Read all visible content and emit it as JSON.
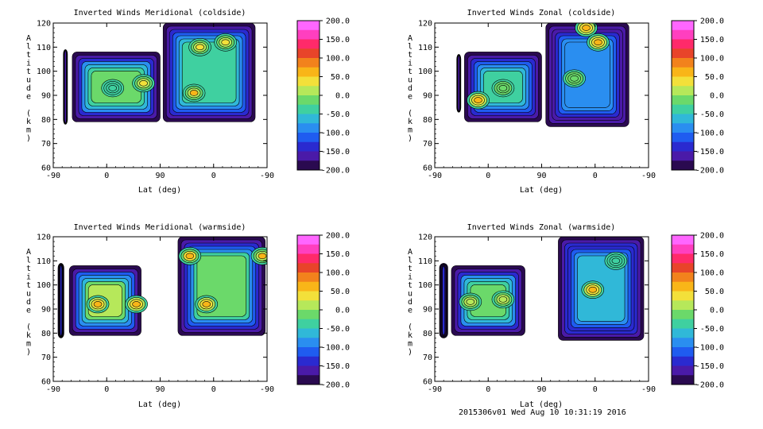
{
  "footer": "2015306v01 Wed Aug 10 10:31:19 2016",
  "colorbar": {
    "levels": [
      "200.0",
      "150.0",
      "100.0",
      "50.0",
      "0.0",
      "-50.0",
      "-100.0",
      "-150.0",
      "-200.0"
    ],
    "colors": [
      "#ff66ff",
      "#ff3fbf",
      "#ff2a6a",
      "#e8442a",
      "#f2821c",
      "#f9b518",
      "#f3e03a",
      "#b6e85a",
      "#6bd96a",
      "#3fd0a0",
      "#30b8d8",
      "#2a8ef0",
      "#1f5cf0",
      "#2a2ad0",
      "#4a1aa8",
      "#2a0a50"
    ]
  },
  "chart_data": [
    {
      "type": "contour",
      "title": "Inverted Winds Meridional (coldside)",
      "xlabel": "Lat (deg)",
      "ylabel": "Altitude (km)",
      "xticks": [
        "-90",
        "0",
        "90",
        "0",
        "-90"
      ],
      "yticks": [
        60,
        70,
        80,
        90,
        100,
        110,
        120
      ],
      "ylim": [
        60,
        120
      ],
      "regions": [
        {
          "x": [
            -73,
            -66
          ],
          "y": [
            78,
            109
          ],
          "level": -150
        },
        {
          "x": [
            -58,
            90
          ],
          "y": [
            79,
            108
          ],
          "level": -10
        },
        {
          "x": [
            95,
            250
          ],
          "y": [
            79,
            120
          ],
          "level": -40
        }
      ],
      "features": [
        {
          "x": 10,
          "y": 93,
          "value": -35
        },
        {
          "x": 62,
          "y": 95,
          "value": 30
        },
        {
          "x": 157,
          "y": 110,
          "value": 40
        },
        {
          "x": 147,
          "y": 91,
          "value": 55
        },
        {
          "x": 200,
          "y": 112,
          "value": 35
        }
      ]
    },
    {
      "type": "contour",
      "title": "Inverted Winds Zonal (coldside)",
      "xlabel": "Lat (deg)",
      "ylabel": "Altitude (km)",
      "xticks": [
        "-90",
        "0",
        "90",
        "0",
        "-90"
      ],
      "yticks": [
        60,
        70,
        80,
        90,
        100,
        110,
        120
      ],
      "ylim": [
        60,
        120
      ],
      "regions": [
        {
          "x": [
            -53,
            -46
          ],
          "y": [
            83,
            107
          ],
          "level": -150
        },
        {
          "x": [
            -40,
            90
          ],
          "y": [
            79,
            108
          ],
          "level": -30
        },
        {
          "x": [
            97,
            237
          ],
          "y": [
            77,
            120
          ],
          "level": -80
        }
      ],
      "features": [
        {
          "x": -17,
          "y": 88,
          "value": 65
        },
        {
          "x": 25,
          "y": 93,
          "value": 0
        },
        {
          "x": 165,
          "y": 118,
          "value": 70
        },
        {
          "x": 185,
          "y": 112,
          "value": 75
        },
        {
          "x": 145,
          "y": 97,
          "value": -10
        }
      ]
    },
    {
      "type": "contour",
      "title": "Inverted Winds Meridional (warmside)",
      "xlabel": "Lat (deg)",
      "ylabel": "Altitude (km)",
      "xticks": [
        "-90",
        "0",
        "90",
        "0",
        "-90"
      ],
      "yticks": [
        60,
        70,
        80,
        90,
        100,
        110,
        120
      ],
      "ylim": [
        60,
        120
      ],
      "regions": [
        {
          "x": [
            -82,
            -72
          ],
          "y": [
            78,
            109
          ],
          "level": -150
        },
        {
          "x": [
            -63,
            58
          ],
          "y": [
            79,
            108
          ],
          "level": 15
        },
        {
          "x": 120,
          "x2": 267,
          "y": [
            79,
            120
          ],
          "level": -20
        }
      ],
      "features": [
        {
          "x": -15,
          "y": 92,
          "value": 70
        },
        {
          "x": 50,
          "y": 92,
          "value": 65
        },
        {
          "x": 168,
          "y": 92,
          "value": 75
        },
        {
          "x": 140,
          "y": 112,
          "value": 60
        },
        {
          "x": 262,
          "y": 112,
          "value": 55
        }
      ]
    },
    {
      "type": "contour",
      "title": "Inverted Winds Zonal (warmside)",
      "xlabel": "Lat (deg)",
      "ylabel": "Altitude (km)",
      "xticks": [
        "-90",
        "0",
        "90",
        "0",
        "-90"
      ],
      "yticks": [
        60,
        70,
        80,
        90,
        100,
        110,
        120
      ],
      "ylim": [
        60,
        120
      ],
      "regions": [
        {
          "x": [
            -82,
            -68
          ],
          "y": [
            78,
            109
          ],
          "level": -150
        },
        {
          "x": [
            -62,
            62
          ],
          "y": [
            79,
            108
          ],
          "level": -10
        },
        {
          "x": [
            118,
            262
          ],
          "y": [
            77,
            120
          ],
          "level": -70
        }
      ],
      "features": [
        {
          "x": -30,
          "y": 93,
          "value": 20
        },
        {
          "x": 25,
          "y": 94,
          "value": 25
        },
        {
          "x": 176,
          "y": 98,
          "value": 70
        },
        {
          "x": 215,
          "y": 110,
          "value": -30
        }
      ]
    }
  ]
}
